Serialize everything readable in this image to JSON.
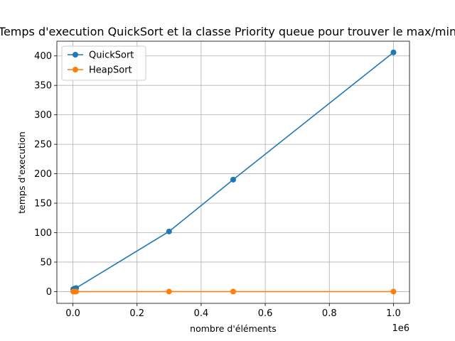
{
  "chart_data": {
    "type": "line",
    "title": "Temps d'execution QuickSort et la classe Priority queue pour trouver le max/min",
    "xlabel": "nombre d'éléments",
    "ylabel": "temps d'execution",
    "x_offset_label": "1e6",
    "xlim": [
      -50000,
      1050000
    ],
    "ylim": [
      -20,
      425
    ],
    "x_ticks": [
      0,
      200000,
      400000,
      600000,
      800000,
      1000000
    ],
    "x_tick_labels": [
      "0.0",
      "0.2",
      "0.4",
      "0.6",
      "0.8",
      "1.0"
    ],
    "y_ticks": [
      0,
      50,
      100,
      150,
      200,
      250,
      300,
      350,
      400
    ],
    "y_tick_labels": [
      "0",
      "50",
      "100",
      "150",
      "200",
      "250",
      "300",
      "350",
      "400"
    ],
    "grid": true,
    "legend_position": "top-left",
    "series": [
      {
        "name": "QuickSort",
        "color": "#1f77b4",
        "x": [
          1000,
          5000,
          10000,
          300000,
          500000,
          1000000
        ],
        "y": [
          4,
          5,
          6,
          102,
          190,
          406
        ]
      },
      {
        "name": "HeapSort",
        "color": "#ff7f0e",
        "x": [
          1000,
          5000,
          10000,
          300000,
          500000,
          1000000
        ],
        "y": [
          0,
          0,
          0,
          0,
          0,
          0
        ]
      }
    ]
  }
}
